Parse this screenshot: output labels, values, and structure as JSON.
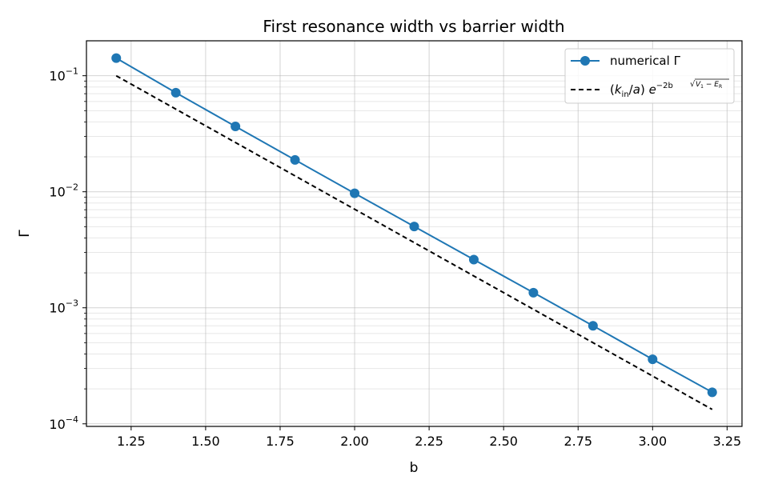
{
  "chart_data": {
    "type": "line",
    "title": "First resonance width vs barrier width",
    "xlabel": "b",
    "ylabel": "Γ",
    "xlim": [
      1.1,
      3.3
    ],
    "ylim": [
      9.5e-05,
      0.2
    ],
    "yscale": "log",
    "grid": true,
    "legend_position": "top-right",
    "x_ticks": [
      1.25,
      1.5,
      1.75,
      2.0,
      2.25,
      2.5,
      2.75,
      3.0,
      3.25
    ],
    "x_tick_labels": [
      "1.25",
      "1.50",
      "1.75",
      "2.00",
      "2.25",
      "2.50",
      "2.75",
      "3.00",
      "3.25"
    ],
    "y_ticks": [
      {
        "value": 0.1,
        "base": "10",
        "exp": "−1"
      },
      {
        "value": 0.01,
        "base": "10",
        "exp": "−2"
      },
      {
        "value": 0.001,
        "base": "10",
        "exp": "−3"
      },
      {
        "value": 0.0001,
        "base": "10",
        "exp": "−4"
      }
    ],
    "series": [
      {
        "name": "numerical Γ",
        "style": "solid-marker",
        "color": "#1f77b4",
        "x": [
          1.2,
          1.4,
          1.6,
          1.8,
          2.0,
          2.2,
          2.4,
          2.6,
          2.8,
          3.0,
          3.2
        ],
        "y": [
          0.142,
          0.0714,
          0.0366,
          0.0188,
          0.0097,
          0.00502,
          0.0026,
          0.00135,
          0.0007,
          0.00036,
          0.000187
        ]
      },
      {
        "name_parts": {
          "k": "k",
          "k_sub": "in",
          "a": "a",
          "e": "e",
          "exp_main": "−2b",
          "root_v": "V",
          "root_v_sub": "1",
          "root_e": "E",
          "root_e_sub": "R"
        },
        "style": "dashed",
        "color": "#000000",
        "x": [
          1.2,
          3.2
        ],
        "y": [
          0.1,
          0.000133
        ]
      }
    ]
  }
}
